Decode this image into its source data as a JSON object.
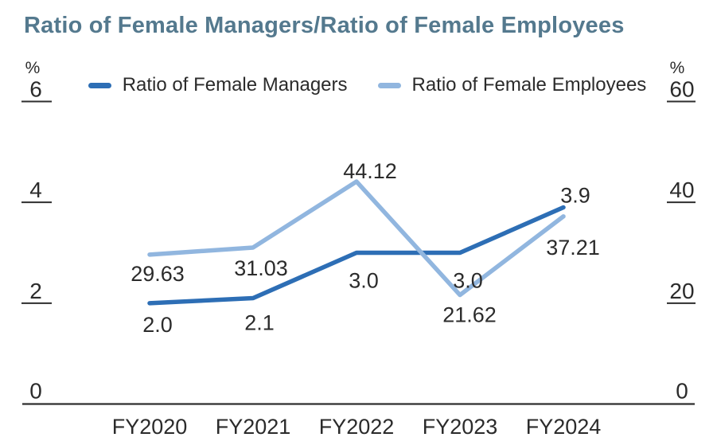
{
  "title": "Ratio of Female Managers/Ratio of Female Employees",
  "colors": {
    "title": "#54798e",
    "axis": "#2e2e2e",
    "text": "#2b2b2b",
    "managers": "#2d6eb5",
    "employees": "#91b6df"
  },
  "left_axis": {
    "unit": "%",
    "ticks": [
      "6",
      "4",
      "2",
      "0"
    ]
  },
  "right_axis": {
    "unit": "%",
    "ticks": [
      "60",
      "40",
      "20",
      "0"
    ]
  },
  "chart_data": {
    "type": "line",
    "title": "Ratio of Female Managers/Ratio of Female Employees",
    "categories": [
      "FY2020",
      "FY2021",
      "FY2022",
      "FY2023",
      "FY2024"
    ],
    "series": [
      {
        "name": "Ratio of Female Managers",
        "axis": "left",
        "color": "#2d6eb5",
        "values": [
          2.0,
          2.1,
          3.0,
          3.0,
          3.9
        ],
        "labels": [
          "2.0",
          "2.1",
          "3.0",
          "3.0",
          "3.9"
        ]
      },
      {
        "name": "Ratio of Female Employees",
        "axis": "right",
        "color": "#91b6df",
        "values": [
          29.63,
          31.03,
          44.12,
          21.62,
          37.21
        ],
        "labels": [
          "29.63",
          "31.03",
          "44.12",
          "21.62",
          "37.21"
        ]
      }
    ],
    "left_axis": {
      "unit": "%",
      "min": 0,
      "max": 6,
      "tick_step": 2
    },
    "right_axis": {
      "unit": "%",
      "min": 0,
      "max": 60,
      "tick_step": 20
    },
    "grid": false,
    "legend_position": "top",
    "xlabel": "",
    "ylabel_left": "%",
    "ylabel_right": "%"
  }
}
